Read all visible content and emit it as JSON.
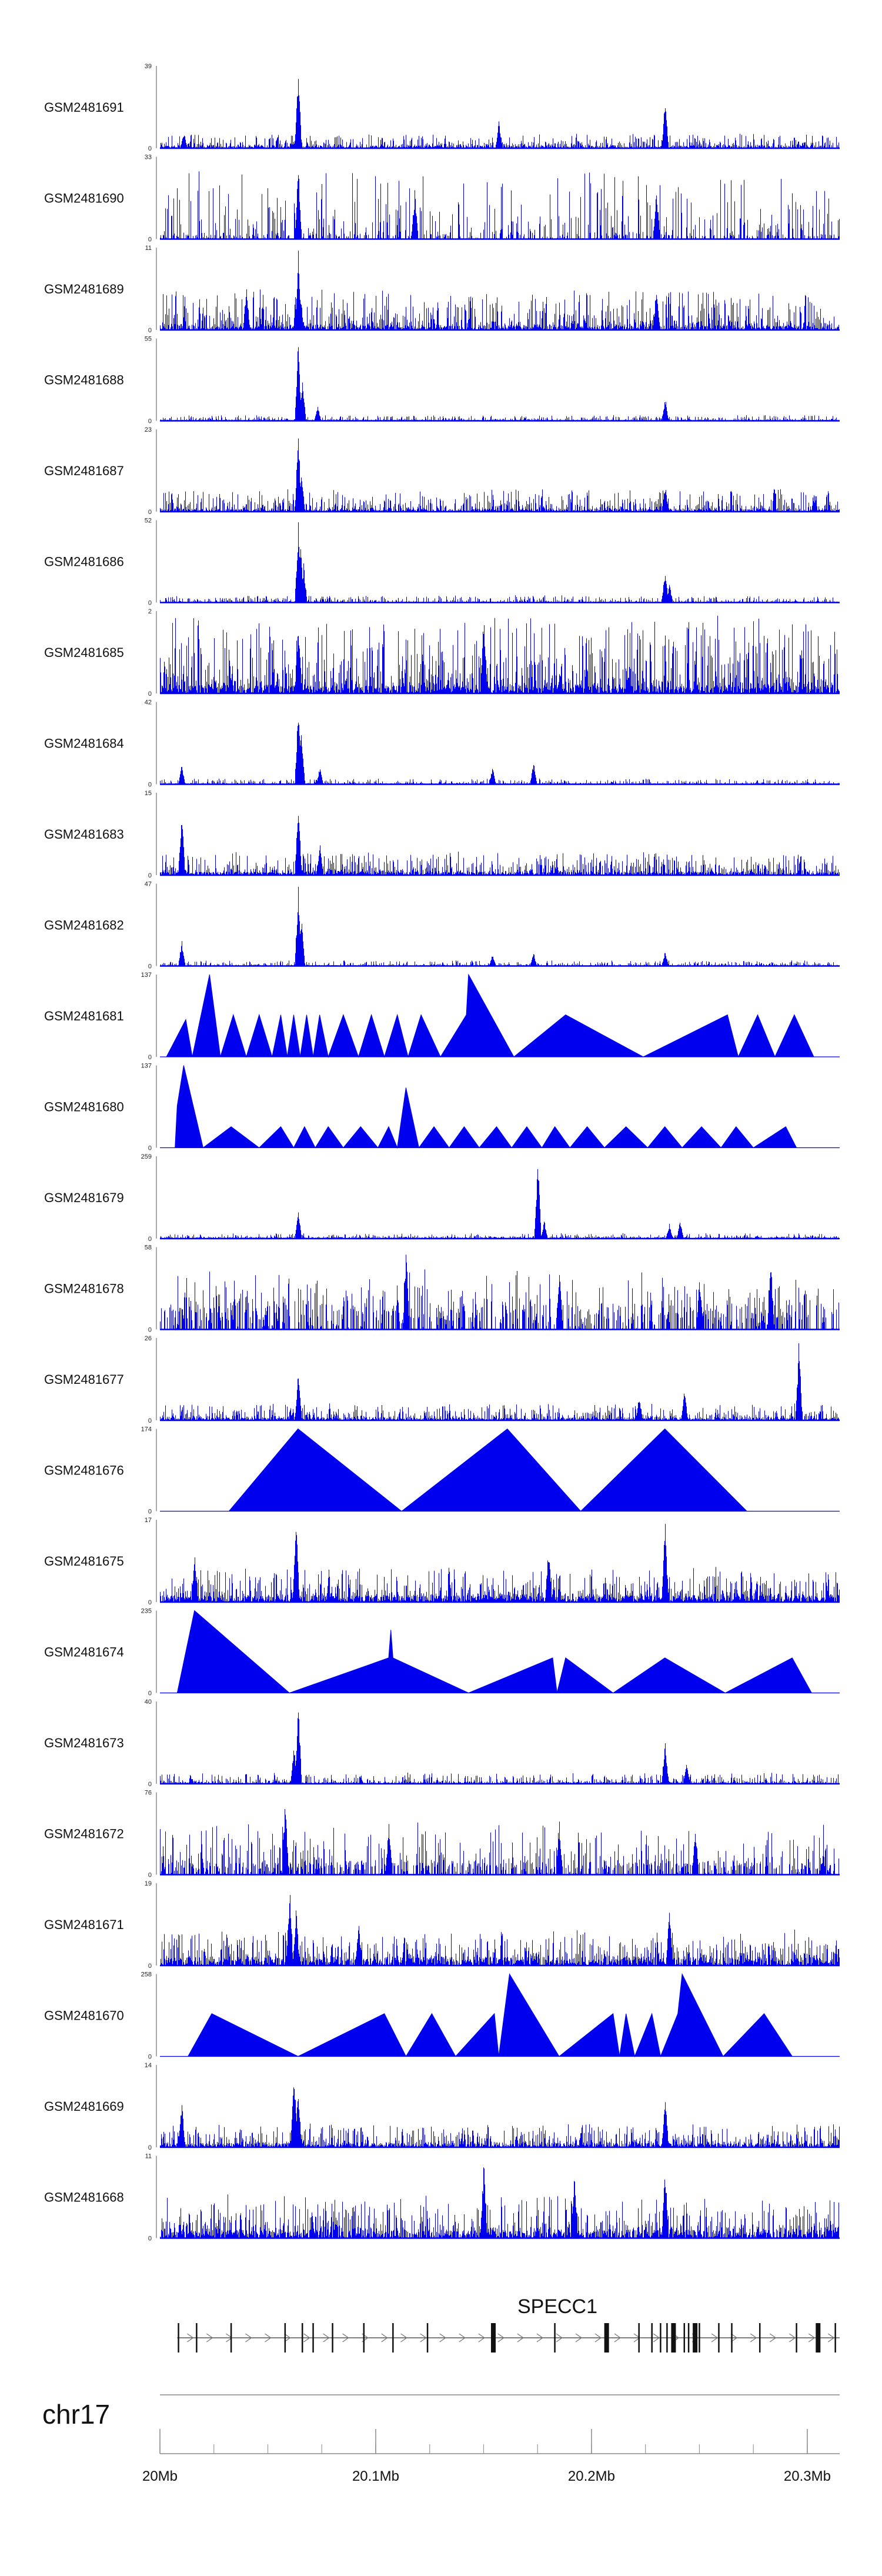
{
  "chart_data": {
    "type": "area",
    "chromosome": "chr17",
    "xlim": [
      20000000,
      20315000
    ],
    "gene": {
      "name": "SPECC1",
      "start": 20008000,
      "end": 20315000,
      "exons": [
        20008600,
        20017000,
        20033000,
        20058000,
        20066000,
        20071000,
        20080000,
        20094500,
        20108000,
        20124000,
        20154500,
        20183000,
        20207000,
        20222000,
        20228000,
        20232000,
        20235000,
        20238000,
        20243000,
        20245000,
        20248000,
        20250000,
        20259000,
        20265000,
        20278000,
        20295000,
        20305000,
        20313000
      ],
      "thick_exons": [
        20154500,
        20207000,
        20238000,
        20248000,
        20305000
      ]
    },
    "x_ticks": [
      {
        "pos": 20000000,
        "label": "20Mb"
      },
      {
        "pos": 20100000,
        "label": "20.1Mb"
      },
      {
        "pos": 20200000,
        "label": "20.2Mb"
      },
      {
        "pos": 20300000,
        "label": "20.3Mb"
      }
    ],
    "minor_ticks": [
      20000000,
      20025000,
      20050000,
      20075000,
      20100000,
      20125000,
      20150000,
      20175000,
      20200000,
      20225000,
      20250000,
      20275000,
      20300000
    ],
    "series": [
      {
        "name": "GSM2481691",
        "ymax": 39,
        "style": "dense",
        "density": 0.85,
        "base": 0.03,
        "noise": 0.15,
        "seed": 11,
        "peaks": [
          [
            20064000,
            39
          ],
          [
            20157000,
            14
          ],
          [
            20234000,
            24
          ],
          [
            20011000,
            8
          ]
        ]
      },
      {
        "name": "GSM2481690",
        "ymax": 33,
        "style": "dense",
        "density": 0.45,
        "base": 0.05,
        "noise": 0.8,
        "seed": 12,
        "peaks": [
          [
            20118000,
            20
          ],
          [
            20064000,
            30
          ],
          [
            20230000,
            22
          ]
        ]
      },
      {
        "name": "GSM2481689",
        "ymax": 11,
        "style": "dense",
        "density": 0.9,
        "base": 0.05,
        "noise": 0.45,
        "seed": 13,
        "peaks": [
          [
            20064000,
            11
          ],
          [
            20040000,
            6
          ],
          [
            20230000,
            6
          ]
        ]
      },
      {
        "name": "GSM2481688",
        "ymax": 55,
        "style": "dense",
        "density": 0.8,
        "base": 0.01,
        "noise": 0.06,
        "seed": 14,
        "peaks": [
          [
            20064000,
            55
          ],
          [
            20066000,
            30
          ],
          [
            20073000,
            10
          ],
          [
            20234000,
            16
          ]
        ]
      },
      {
        "name": "GSM2481687",
        "ymax": 23,
        "style": "dense",
        "density": 0.9,
        "base": 0.03,
        "noise": 0.25,
        "seed": 15,
        "peaks": [
          [
            20064000,
            23
          ],
          [
            20065500,
            13
          ],
          [
            20234000,
            8
          ]
        ]
      },
      {
        "name": "GSM2481686",
        "ymax": 52,
        "style": "dense",
        "density": 0.8,
        "base": 0.01,
        "noise": 0.08,
        "seed": 16,
        "peaks": [
          [
            20064000,
            52
          ],
          [
            20065000,
            40
          ],
          [
            20066500,
            25
          ],
          [
            20234000,
            22
          ],
          [
            20236000,
            12
          ]
        ]
      },
      {
        "name": "GSM2481685",
        "ymax": 2,
        "style": "dense",
        "density": 0.95,
        "base": 0.1,
        "noise": 0.85,
        "seed": 17,
        "peaks": [
          [
            20064000,
            2
          ],
          [
            20150000,
            2
          ]
        ]
      },
      {
        "name": "GSM2481684",
        "ymax": 42,
        "style": "dense",
        "density": 0.8,
        "base": 0.01,
        "noise": 0.06,
        "seed": 18,
        "peaks": [
          [
            20064000,
            42
          ],
          [
            20065500,
            30
          ],
          [
            20010000,
            10
          ],
          [
            20074000,
            9
          ],
          [
            20154000,
            9
          ],
          [
            20173000,
            12
          ]
        ]
      },
      {
        "name": "GSM2481683",
        "ymax": 15,
        "style": "dense",
        "density": 0.9,
        "base": 0.04,
        "noise": 0.25,
        "seed": 19,
        "peaks": [
          [
            20064000,
            15
          ],
          [
            20010000,
            12
          ],
          [
            20074000,
            6
          ]
        ]
      },
      {
        "name": "GSM2481682",
        "ymax": 47,
        "style": "dense",
        "density": 0.8,
        "base": 0.01,
        "noise": 0.06,
        "seed": 20,
        "peaks": [
          [
            20064000,
            47
          ],
          [
            20065500,
            28
          ],
          [
            20010000,
            15
          ],
          [
            20154000,
            7
          ],
          [
            20173000,
            8
          ],
          [
            20234000,
            9
          ]
        ]
      },
      {
        "name": "GSM2481681",
        "ymax": 137,
        "style": "triangles",
        "points": [
          [
            20003000,
            0
          ],
          [
            20012000,
            62
          ],
          [
            20015000,
            0
          ],
          [
            20023000,
            137
          ],
          [
            20028000,
            0
          ],
          [
            20034000,
            70
          ],
          [
            20040000,
            0
          ],
          [
            20046000,
            70
          ],
          [
            20052000,
            0
          ],
          [
            20056000,
            70
          ],
          [
            20059000,
            0
          ],
          [
            20062000,
            70
          ],
          [
            20065000,
            0
          ],
          [
            20068000,
            70
          ],
          [
            20071000,
            0
          ],
          [
            20074000,
            70
          ],
          [
            20078000,
            0
          ],
          [
            20085000,
            70
          ],
          [
            20092000,
            0
          ],
          [
            20098000,
            70
          ],
          [
            20104000,
            0
          ],
          [
            20110000,
            70
          ],
          [
            20115000,
            0
          ],
          [
            20121000,
            70
          ],
          [
            20130000,
            0
          ],
          [
            20142000,
            70
          ],
          [
            20143000,
            137
          ],
          [
            20164000,
            0
          ],
          [
            20188000,
            70
          ],
          [
            20224000,
            0
          ],
          [
            20263000,
            70
          ],
          [
            20268000,
            0
          ],
          [
            20277000,
            70
          ],
          [
            20285000,
            0
          ],
          [
            20294000,
            70
          ],
          [
            20303000,
            0
          ]
        ]
      },
      {
        "name": "GSM2481680",
        "ymax": 137,
        "style": "triangles",
        "points": [
          [
            20003000,
            0
          ],
          [
            20007000,
            0
          ],
          [
            20008000,
            70
          ],
          [
            20011000,
            137
          ],
          [
            20020000,
            0
          ],
          [
            20033000,
            35
          ],
          [
            20046000,
            0
          ],
          [
            20056000,
            35
          ],
          [
            20062000,
            0
          ],
          [
            20067000,
            35
          ],
          [
            20072000,
            0
          ],
          [
            20078000,
            35
          ],
          [
            20085000,
            0
          ],
          [
            20093000,
            35
          ],
          [
            20101000,
            0
          ],
          [
            20106000,
            35
          ],
          [
            20110000,
            0
          ],
          [
            20114000,
            100
          ],
          [
            20120000,
            0
          ],
          [
            20127000,
            35
          ],
          [
            20134000,
            0
          ],
          [
            20141000,
            35
          ],
          [
            20148000,
            0
          ],
          [
            20156000,
            35
          ],
          [
            20163000,
            0
          ],
          [
            20170000,
            35
          ],
          [
            20177000,
            0
          ],
          [
            20183000,
            35
          ],
          [
            20190000,
            0
          ],
          [
            20198000,
            35
          ],
          [
            20206000,
            0
          ],
          [
            20216000,
            35
          ],
          [
            20226000,
            0
          ],
          [
            20234000,
            35
          ],
          [
            20242000,
            0
          ],
          [
            20251000,
            35
          ],
          [
            20260000,
            0
          ],
          [
            20267000,
            35
          ],
          [
            20275000,
            0
          ],
          [
            20290000,
            35
          ],
          [
            20295000,
            0
          ]
        ]
      },
      {
        "name": "GSM2481679",
        "ymax": 259,
        "style": "dense",
        "density": 0.7,
        "base": 0.02,
        "noise": 0.05,
        "seed": 23,
        "peaks": [
          [
            20064000,
            90
          ],
          [
            20175000,
            259
          ],
          [
            20178000,
            60
          ],
          [
            20236000,
            50
          ],
          [
            20241000,
            60
          ]
        ]
      },
      {
        "name": "GSM2481678",
        "ymax": 58,
        "style": "dense",
        "density": 0.55,
        "base": 0.3,
        "noise": 0.5,
        "seed": 24,
        "peaks": [
          [
            20114000,
            58
          ],
          [
            20185000,
            50
          ],
          [
            20250000,
            40
          ],
          [
            20283000,
            50
          ]
        ]
      },
      {
        "name": "GSM2481677",
        "ymax": 26,
        "style": "dense",
        "density": 0.9,
        "base": 0.03,
        "noise": 0.18,
        "seed": 25,
        "peaks": [
          [
            20064000,
            17
          ],
          [
            20296000,
            26
          ],
          [
            20243000,
            10
          ],
          [
            20222000,
            8
          ]
        ]
      },
      {
        "name": "GSM2481676",
        "ymax": 174,
        "style": "triangles",
        "points": [
          [
            20000000,
            0
          ],
          [
            20032000,
            0
          ],
          [
            20064000,
            174
          ],
          [
            20112000,
            0
          ],
          [
            20161000,
            174
          ],
          [
            20195000,
            0
          ],
          [
            20234000,
            174
          ],
          [
            20272000,
            0
          ]
        ]
      },
      {
        "name": "GSM2481675",
        "ymax": 17,
        "style": "dense",
        "density": 0.95,
        "base": 0.08,
        "noise": 0.35,
        "seed": 27,
        "peaks": [
          [
            20063000,
            17
          ],
          [
            20234000,
            17
          ],
          [
            20016000,
            10
          ],
          [
            20180000,
            12
          ]
        ]
      },
      {
        "name": "GSM2481674",
        "ymax": 235,
        "style": "triangles",
        "points": [
          [
            20008000,
            0
          ],
          [
            20016000,
            235
          ],
          [
            20060000,
            0
          ],
          [
            20106000,
            100
          ],
          [
            20107000,
            180
          ],
          [
            20108000,
            100
          ],
          [
            20143000,
            0
          ],
          [
            20182000,
            100
          ],
          [
            20184000,
            0
          ],
          [
            20188000,
            100
          ],
          [
            20210000,
            0
          ],
          [
            20234000,
            100
          ],
          [
            20262000,
            0
          ],
          [
            20293000,
            100
          ],
          [
            20302000,
            0
          ]
        ]
      },
      {
        "name": "GSM2481673",
        "ymax": 40,
        "style": "dense",
        "density": 0.85,
        "base": 0.02,
        "noise": 0.12,
        "seed": 29,
        "peaks": [
          [
            20064000,
            40
          ],
          [
            20062000,
            20
          ],
          [
            20234000,
            22
          ],
          [
            20244000,
            10
          ]
        ]
      },
      {
        "name": "GSM2481672",
        "ymax": 76,
        "style": "dense",
        "density": 0.6,
        "base": 0.15,
        "noise": 0.5,
        "seed": 30,
        "peaks": [
          [
            20058000,
            76
          ],
          [
            20106000,
            50
          ],
          [
            20185000,
            50
          ],
          [
            20248000,
            45
          ]
        ]
      },
      {
        "name": "GSM2481671",
        "ymax": 19,
        "style": "dense",
        "density": 0.9,
        "base": 0.1,
        "noise": 0.35,
        "seed": 31,
        "peaks": [
          [
            20060000,
            19
          ],
          [
            20063000,
            14
          ],
          [
            20236000,
            14
          ],
          [
            20092000,
            10
          ]
        ]
      },
      {
        "name": "GSM2481670",
        "ymax": 258,
        "style": "triangles",
        "points": [
          [
            20013000,
            0
          ],
          [
            20024000,
            134
          ],
          [
            20064000,
            0
          ],
          [
            20104000,
            134
          ],
          [
            20114000,
            0
          ],
          [
            20126000,
            134
          ],
          [
            20137000,
            0
          ],
          [
            20155000,
            134
          ],
          [
            20157000,
            0
          ],
          [
            20162000,
            258
          ],
          [
            20185000,
            0
          ],
          [
            20210000,
            134
          ],
          [
            20213000,
            0
          ],
          [
            20216000,
            134
          ],
          [
            20220000,
            0
          ],
          [
            20228000,
            134
          ],
          [
            20232000,
            0
          ],
          [
            20240000,
            134
          ],
          [
            20242000,
            258
          ],
          [
            20261000,
            0
          ],
          [
            20280000,
            134
          ],
          [
            20293000,
            0
          ]
        ]
      },
      {
        "name": "GSM2481669",
        "ymax": 14,
        "style": "dense",
        "density": 0.9,
        "base": 0.05,
        "noise": 0.25,
        "seed": 33,
        "peaks": [
          [
            20062000,
            14
          ],
          [
            20064000,
            10
          ],
          [
            20010000,
            8
          ],
          [
            20234000,
            9
          ]
        ]
      },
      {
        "name": "GSM2481668",
        "ymax": 11,
        "style": "dense",
        "density": 0.9,
        "base": 0.1,
        "noise": 0.45,
        "seed": 34,
        "peaks": [
          [
            20150000,
            11
          ],
          [
            20234000,
            10
          ],
          [
            20192000,
            9
          ]
        ]
      }
    ]
  }
}
